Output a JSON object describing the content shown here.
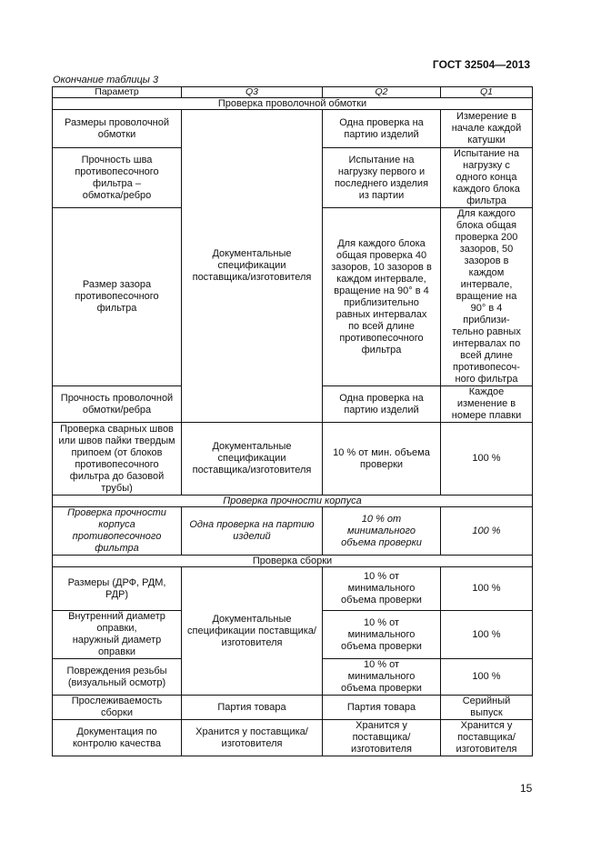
{
  "header": {
    "standard": "ГОСТ 32504—2013"
  },
  "caption": "Окончание таблицы 3",
  "table": {
    "columns": [
      "Параметр",
      "Q3",
      "Q2",
      "Q1"
    ],
    "sections": [
      {
        "title": "Проверка проволочной обмотки",
        "merged_q3": "Документальные\nспецификации\nпоставщика/изготовителя",
        "rows": [
          {
            "param": "Размеры проволочной\nобмотки",
            "q2": "Одна проверка на\nпартию изделий",
            "q1": "Измерение в\nначале каждой\nкатушки"
          },
          {
            "param": "Прочность шва\nпротивопесочного\nфильтра –\nобмотка/ребро",
            "q2": "Испытание на\nнагрузку первого и\nпоследнего изделия\nиз партии",
            "q1": "Испытание на\nнагрузку с\nодного конца\nкаждого блока\nфильтра"
          },
          {
            "param": "Размер зазора\nпротивопесочного\nфильтра",
            "q2": "Для каждого блока\nобщая проверка 40\nзазоров, 10 зазоров в\nкаждом интервале,\nвращение на 90° в 4\nприблизительно\nравных интервалах\nпо всей длине\nпротивопесочного\nфильтра",
            "q1": "Для каждого\nблока общая\nпроверка 200\nзазоров, 50\nзазоров в\nкаждом\nинтервале,\nвращение на\n90° в 4\nприблизи-\nтельно равных\nинтервалах по\nвсей длине\nпротивопесоч-\nного фильтра"
          },
          {
            "param": "Прочность проволочной\nобмотки/ребра",
            "q2": "Одна проверка на\nпартию изделий",
            "q1": "Каждое\nизменение в\nномере плавки"
          }
        ],
        "extra_row": {
          "param": "Проверка сварных швов\nили швов пайки твердым\nприпоем (от блоков\nпротивопесочного\nфильтра до базовой\nтрубы)",
          "q3": "Документальные\nспецификации\nпоставщика/изготовителя",
          "q2": "10 % от мин. объема\nпроверки",
          "q1": "100 %"
        }
      },
      {
        "title": "Проверка прочности корпуса",
        "rows": [
          {
            "param": "Проверка прочности\nкорпуса\nпротивопесочного\nфильтра",
            "q3": "Одна проверка на партию\nизделий",
            "q2": "10 % от\nминимального\nобъема проверки",
            "q1": "100 %"
          }
        ]
      },
      {
        "title": "Проверка сборки",
        "merged_q3": "Документальные\nспецификации поставщика/\nизготовителя",
        "rows": [
          {
            "param": "Размеры (ДРФ, РДМ,\nРДР)",
            "q2": "10 % от\nминимального\nобъема проверки",
            "q1": "100 %"
          },
          {
            "param": "Внутренний диаметр\nоправки,\nнаружный диаметр\nоправки",
            "q2": "10 % от\nминимального\nобъема проверки",
            "q1": "100 %"
          },
          {
            "param": "Повреждения резьбы\n(визуальный осмотр)",
            "q2": "10 % от\nминимального\nобъема проверки",
            "q1": "100 %"
          }
        ],
        "tail_rows": [
          {
            "param": "Прослеживаемость\nсборки",
            "q3": "Партия товара",
            "q2": "Партия товара",
            "q1": "Серийный\nвыпуск"
          },
          {
            "param": "Документация по\nконтролю качества",
            "q3": "Хранится у поставщика/\nизготовителя",
            "q2": "Хранится у\nпоставщика/\nизготовителя",
            "q1": "Хранится у\nпоставщика/\nизготовителя"
          }
        ]
      }
    ]
  },
  "page_number": "15"
}
